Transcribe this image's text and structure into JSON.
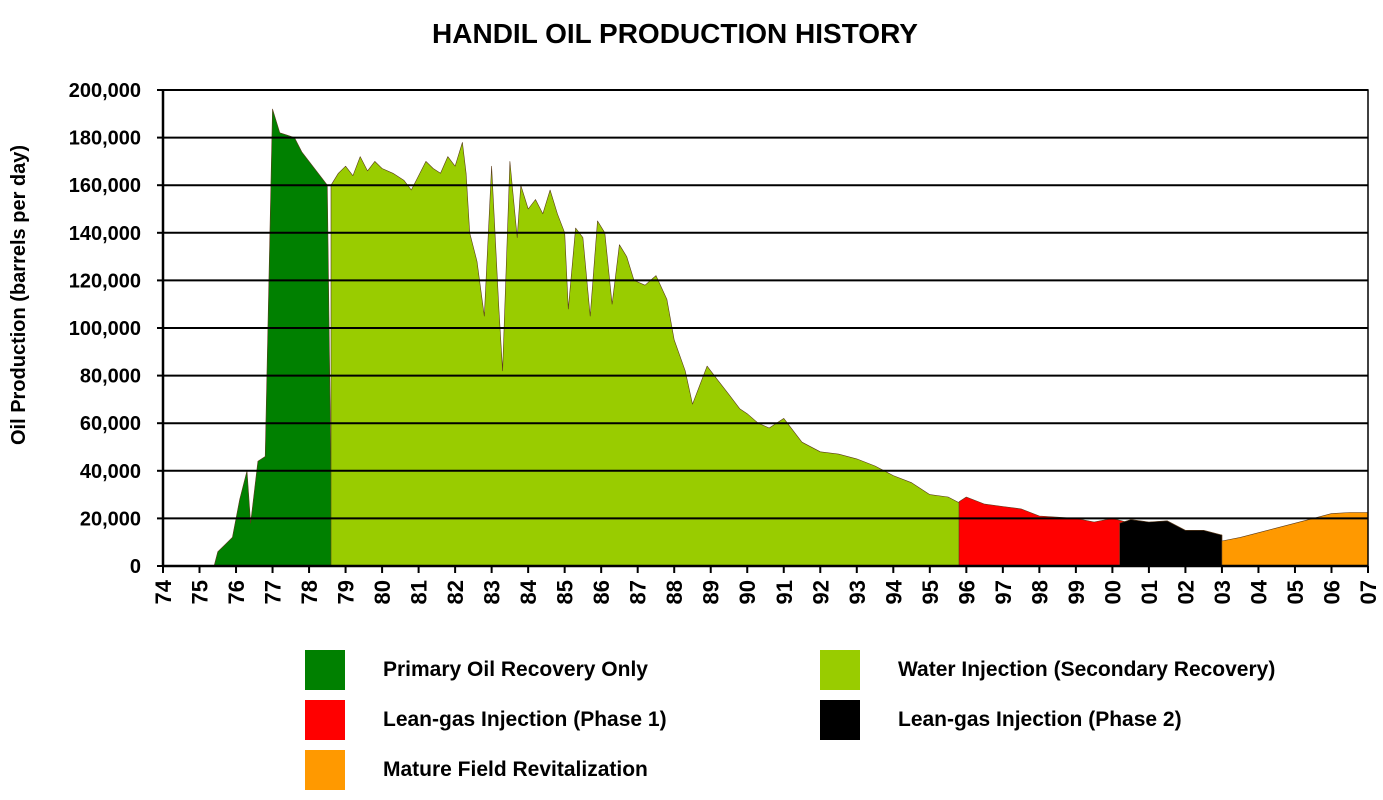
{
  "chart_data": {
    "type": "area",
    "title": "HANDIL OIL PRODUCTION HISTORY",
    "xlabel": "",
    "ylabel": "Oil Production (barrels per day)",
    "ylim": [
      0,
      200000
    ],
    "xlim": [
      1974,
      2007
    ],
    "x_tick_labels": [
      "74",
      "75",
      "76",
      "77",
      "78",
      "79",
      "80",
      "81",
      "82",
      "83",
      "84",
      "85",
      "86",
      "87",
      "88",
      "89",
      "90",
      "91",
      "92",
      "93",
      "94",
      "95",
      "96",
      "97",
      "98",
      "99",
      "00",
      "01",
      "02",
      "03",
      "04",
      "05",
      "06",
      "07"
    ],
    "y_tick_labels": [
      "0",
      "20,000",
      "40,000",
      "60,000",
      "80,000",
      "100,000",
      "120,000",
      "140,000",
      "160,000",
      "180,000",
      "200,000"
    ],
    "grid": "horizontal",
    "legend_position": "bottom",
    "series": [
      {
        "name": "Primary Oil Recovery Only",
        "color": "#008000",
        "points": [
          [
            1975.4,
            0
          ],
          [
            1975.5,
            6000
          ],
          [
            1975.7,
            9000
          ],
          [
            1975.9,
            12000
          ],
          [
            1976.1,
            28000
          ],
          [
            1976.3,
            40000
          ],
          [
            1976.4,
            18000
          ],
          [
            1976.6,
            44000
          ],
          [
            1976.8,
            46000
          ],
          [
            1977.0,
            192000
          ],
          [
            1977.2,
            182000
          ],
          [
            1977.4,
            181000
          ],
          [
            1977.6,
            180000
          ],
          [
            1977.8,
            174000
          ],
          [
            1978.0,
            170000
          ],
          [
            1978.2,
            166000
          ],
          [
            1978.4,
            162000
          ],
          [
            1978.5,
            160000
          ],
          [
            1978.6,
            38000
          ],
          [
            1979.0,
            42000
          ],
          [
            1979.3,
            40000
          ],
          [
            1979.6,
            46000
          ],
          [
            1980.0,
            52000
          ],
          [
            1980.3,
            54000
          ],
          [
            1980.6,
            52000
          ],
          [
            1980.9,
            58000
          ],
          [
            1981.2,
            60000
          ],
          [
            1981.5,
            56000
          ],
          [
            1981.8,
            54000
          ],
          [
            1982.0,
            50000
          ],
          [
            1982.2,
            32000
          ],
          [
            1982.4,
            34000
          ],
          [
            1982.6,
            24000
          ],
          [
            1982.8,
            36000
          ],
          [
            1983.0,
            46000
          ],
          [
            1983.2,
            40000
          ],
          [
            1983.4,
            50000
          ],
          [
            1983.6,
            44000
          ],
          [
            1983.8,
            46000
          ],
          [
            1984.0,
            40000
          ],
          [
            1984.3,
            36000
          ],
          [
            1984.5,
            34000
          ],
          [
            1984.7,
            40000
          ],
          [
            1985.0,
            38000
          ],
          [
            1985.3,
            36000
          ],
          [
            1985.5,
            40000
          ],
          [
            1985.8,
            38000
          ],
          [
            1986.0,
            37000
          ],
          [
            1986.3,
            36000
          ],
          [
            1986.6,
            35000
          ],
          [
            1986.9,
            38000
          ],
          [
            1987.2,
            37000
          ],
          [
            1987.5,
            35000
          ],
          [
            1987.8,
            33000
          ],
          [
            1988.0,
            30000
          ],
          [
            1988.3,
            25000
          ],
          [
            1988.6,
            24000
          ],
          [
            1988.9,
            32000
          ],
          [
            1989.2,
            31000
          ],
          [
            1989.5,
            29000
          ],
          [
            1989.8,
            28000
          ],
          [
            1990.0,
            27000
          ],
          [
            1990.5,
            26000
          ],
          [
            1991.0,
            26000
          ],
          [
            1991.5,
            25000
          ],
          [
            1992.0,
            24000
          ],
          [
            1992.5,
            23000
          ],
          [
            1993.0,
            21000
          ],
          [
            1993.5,
            19000
          ],
          [
            1994.0,
            20000
          ],
          [
            1994.5,
            17000
          ],
          [
            1995.0,
            15000
          ],
          [
            1995.5,
            14000
          ],
          [
            1996.0,
            13000
          ],
          [
            1996.5,
            12500
          ],
          [
            1997.0,
            12000
          ],
          [
            1997.5,
            11000
          ],
          [
            1998.0,
            10000
          ],
          [
            1998.5,
            9800
          ],
          [
            1999.0,
            9000
          ],
          [
            1999.5,
            8500
          ],
          [
            2000.0,
            8000
          ],
          [
            2000.5,
            8500
          ],
          [
            2001.0,
            8000
          ],
          [
            2001.5,
            7500
          ],
          [
            2002.0,
            7000
          ],
          [
            2002.5,
            7500
          ],
          [
            2003.0,
            6500
          ]
        ]
      },
      {
        "name": "Water Injection (Secondary Recovery)",
        "color": "#99CC00",
        "points": [
          [
            1978.6,
            160000
          ],
          [
            1978.8,
            165000
          ],
          [
            1979.0,
            168000
          ],
          [
            1979.2,
            164000
          ],
          [
            1979.4,
            172000
          ],
          [
            1979.6,
            166000
          ],
          [
            1979.8,
            170000
          ],
          [
            1980.0,
            167000
          ],
          [
            1980.3,
            165000
          ],
          [
            1980.6,
            162000
          ],
          [
            1980.8,
            158000
          ],
          [
            1981.0,
            164000
          ],
          [
            1981.2,
            170000
          ],
          [
            1981.4,
            167000
          ],
          [
            1981.6,
            165000
          ],
          [
            1981.8,
            172000
          ],
          [
            1982.0,
            168000
          ],
          [
            1982.2,
            178000
          ],
          [
            1982.3,
            165000
          ],
          [
            1982.4,
            140000
          ],
          [
            1982.6,
            128000
          ],
          [
            1982.8,
            105000
          ],
          [
            1983.0,
            168000
          ],
          [
            1983.2,
            108000
          ],
          [
            1983.3,
            82000
          ],
          [
            1983.5,
            170000
          ],
          [
            1983.7,
            138000
          ],
          [
            1983.8,
            160000
          ],
          [
            1984.0,
            150000
          ],
          [
            1984.2,
            154000
          ],
          [
            1984.4,
            148000
          ],
          [
            1984.6,
            158000
          ],
          [
            1984.8,
            148000
          ],
          [
            1985.0,
            140000
          ],
          [
            1985.1,
            108000
          ],
          [
            1985.3,
            142000
          ],
          [
            1985.5,
            138000
          ],
          [
            1985.7,
            105000
          ],
          [
            1985.9,
            145000
          ],
          [
            1986.1,
            140000
          ],
          [
            1986.3,
            110000
          ],
          [
            1986.5,
            135000
          ],
          [
            1986.7,
            130000
          ],
          [
            1986.9,
            120000
          ],
          [
            1987.2,
            118000
          ],
          [
            1987.5,
            122000
          ],
          [
            1987.8,
            112000
          ],
          [
            1988.0,
            95000
          ],
          [
            1988.3,
            82000
          ],
          [
            1988.5,
            68000
          ],
          [
            1988.7,
            76000
          ],
          [
            1988.9,
            84000
          ],
          [
            1989.2,
            78000
          ],
          [
            1989.5,
            72000
          ],
          [
            1989.8,
            66000
          ],
          [
            1990.0,
            64000
          ],
          [
            1990.3,
            60000
          ],
          [
            1990.6,
            58000
          ],
          [
            1991.0,
            62000
          ],
          [
            1991.5,
            52000
          ],
          [
            1992.0,
            48000
          ],
          [
            1992.5,
            47000
          ],
          [
            1993.0,
            45000
          ],
          [
            1993.5,
            42000
          ],
          [
            1994.0,
            38000
          ],
          [
            1994.5,
            35000
          ],
          [
            1995.0,
            30000
          ],
          [
            1995.5,
            29000
          ],
          [
            1996.0,
            25000
          ],
          [
            1996.5,
            23000
          ],
          [
            1997.0,
            22000
          ],
          [
            1997.5,
            20000
          ],
          [
            1998.0,
            18500
          ],
          [
            1998.5,
            18000
          ],
          [
            1999.0,
            16500
          ],
          [
            1999.5,
            16000
          ],
          [
            2000.0,
            14000
          ],
          [
            2000.5,
            14500
          ],
          [
            2001.0,
            13500
          ],
          [
            2001.5,
            13000
          ],
          [
            2002.0,
            11000
          ],
          [
            2002.5,
            11000
          ],
          [
            2003.0,
            10000
          ],
          [
            2004.0,
            9000
          ],
          [
            2005.0,
            8500
          ],
          [
            2006.0,
            8000
          ],
          [
            2007.0,
            8000
          ]
        ]
      },
      {
        "name": "Lean-gas Injection (Phase 1)",
        "color": "#FF0000",
        "points": [
          [
            1995.8,
            27000
          ],
          [
            1996.0,
            29000
          ],
          [
            1996.5,
            26000
          ],
          [
            1997.0,
            25000
          ],
          [
            1997.5,
            24000
          ],
          [
            1998.0,
            21000
          ],
          [
            1998.5,
            20500
          ],
          [
            1999.0,
            20000
          ],
          [
            1999.5,
            18500
          ],
          [
            2000.0,
            20000
          ],
          [
            2000.5,
            18000
          ],
          [
            2001.0,
            17500
          ],
          [
            2001.5,
            16500
          ],
          [
            2002.0,
            14500
          ],
          [
            2002.5,
            14000
          ],
          [
            2003.0,
            13000
          ]
        ]
      },
      {
        "name": "Lean-gas Injection (Phase 2)",
        "color": "#000000",
        "points": [
          [
            2000.2,
            18000
          ],
          [
            2000.5,
            19500
          ],
          [
            2001.0,
            18500
          ],
          [
            2001.5,
            19000
          ],
          [
            2002.0,
            15000
          ],
          [
            2002.5,
            15000
          ],
          [
            2003.0,
            13000
          ]
        ]
      },
      {
        "name": "Mature Field Revitalization",
        "color": "#FF9900",
        "points": [
          [
            2003.0,
            10500
          ],
          [
            2003.5,
            12000
          ],
          [
            2004.0,
            14000
          ],
          [
            2004.5,
            16000
          ],
          [
            2005.0,
            18000
          ],
          [
            2005.5,
            20000
          ],
          [
            2006.0,
            22000
          ],
          [
            2006.5,
            22500
          ],
          [
            2007.0,
            22500
          ]
        ]
      }
    ]
  }
}
